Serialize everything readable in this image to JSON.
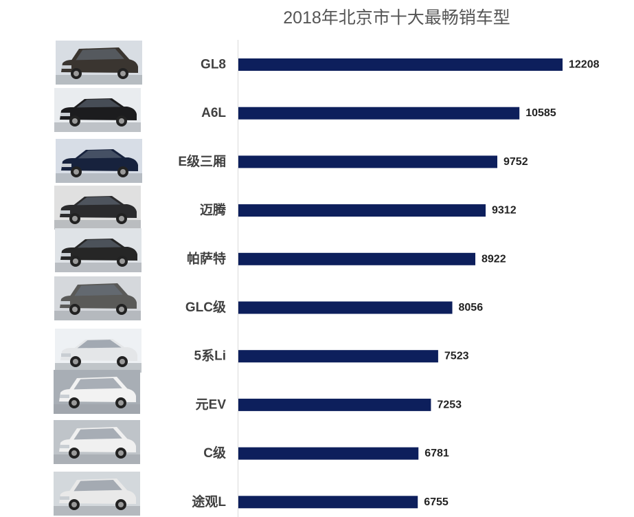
{
  "chart_data": {
    "type": "bar",
    "orientation": "horizontal",
    "title": "2018年北京市十大最畅销车型",
    "categories": [
      "GL8",
      "A6L",
      "E级三厢",
      "迈腾",
      "帕萨特",
      "GLC级",
      "5系Li",
      "元EV",
      "C级",
      "途观L"
    ],
    "values": [
      12208,
      10585,
      9752,
      9312,
      8922,
      8056,
      7523,
      7253,
      6781,
      6755
    ],
    "bar_color": "#0d1f5c",
    "data_labels": true,
    "grid": false,
    "legend": "none"
  },
  "thumbnails": [
    {
      "icon": "minivan-photo-icon",
      "body": "#3a3530",
      "bg": "#d8dde3"
    },
    {
      "icon": "sedan-photo-icon",
      "body": "#1c1c1e",
      "bg": "#e9ecef"
    },
    {
      "icon": "sedan-photo-icon",
      "body": "#17223d",
      "bg": "#d7dde6"
    },
    {
      "icon": "sedan-photo-icon",
      "body": "#2b2b2d",
      "bg": "#e0e0e0"
    },
    {
      "icon": "sedan-photo-icon",
      "body": "#262626",
      "bg": "#dfe3e7"
    },
    {
      "icon": "suv-photo-icon",
      "body": "#5a5a58",
      "bg": "#d5d8dc"
    },
    {
      "icon": "sedan-photo-icon",
      "body": "#e4e6e8",
      "bg": "#eef1f4"
    },
    {
      "icon": "suv-photo-icon",
      "body": "#f2f2f2",
      "bg": "#a8aeb5"
    },
    {
      "icon": "wagon-photo-icon",
      "body": "#f0f0f0",
      "bg": "#bfc4c9"
    },
    {
      "icon": "suv-photo-icon",
      "body": "#e9e9e9",
      "bg": "#d3d8dc"
    }
  ]
}
